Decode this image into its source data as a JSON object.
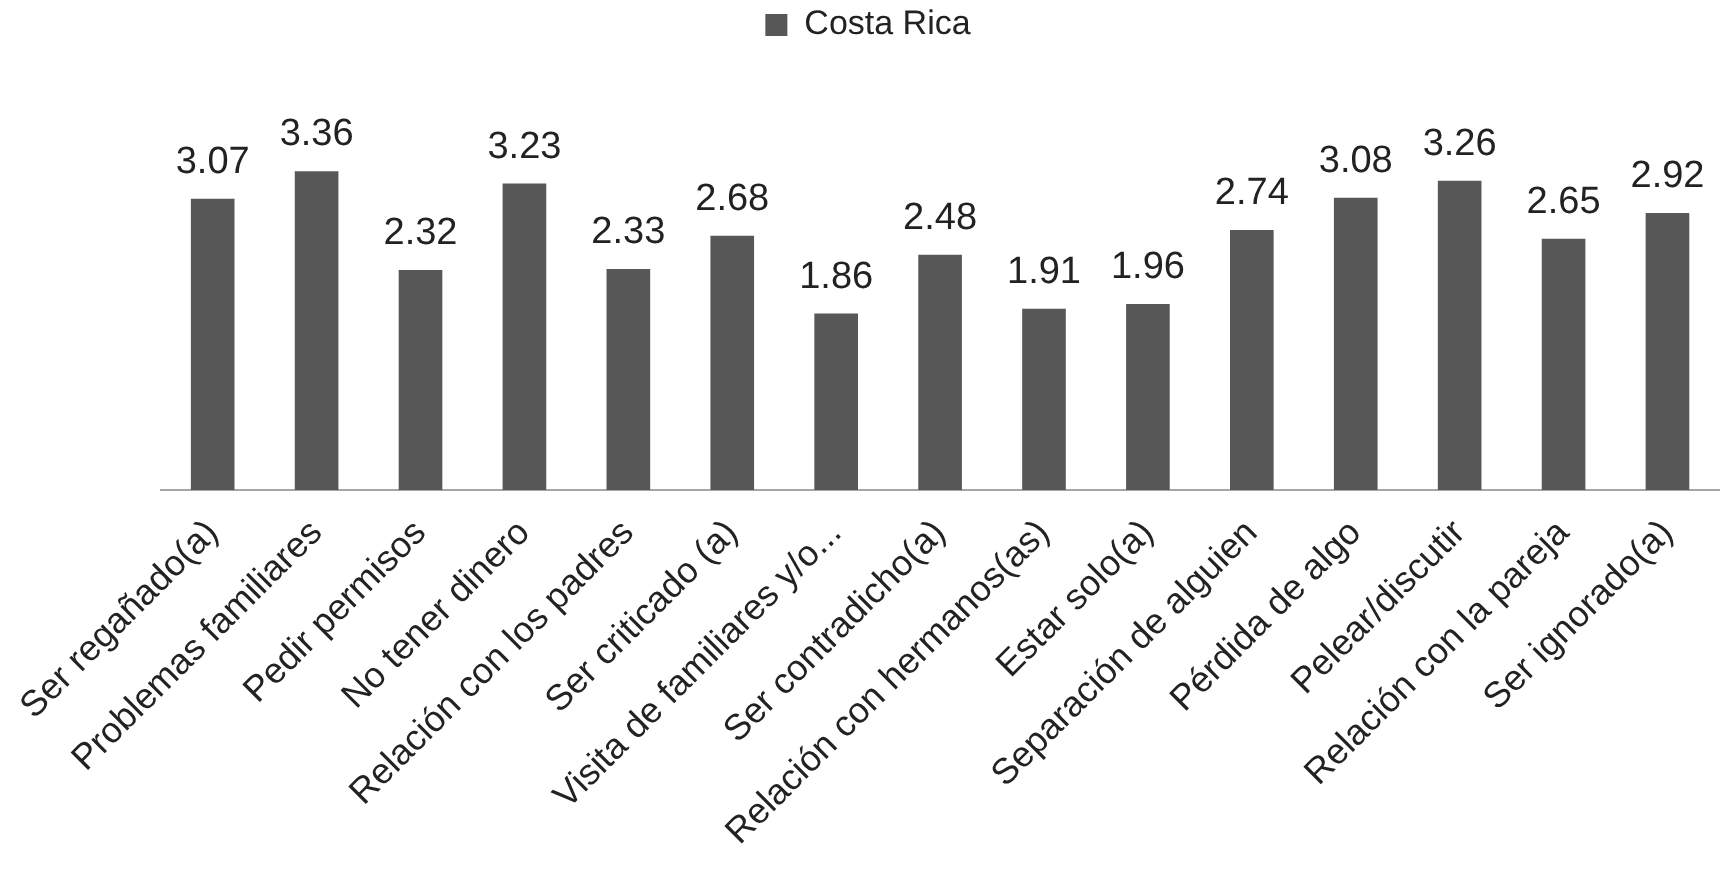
{
  "chart_data": {
    "type": "bar",
    "categories": [
      "Ser regañado(a)",
      "Problemas familiares",
      "Pedir permisos",
      "No tener dinero",
      "Relación con los padres",
      "Ser criticado (a)",
      "Visita de familiares y/o...",
      "Ser contradicho(a)",
      "Relación con hermanos(as)",
      "Estar solo(a)",
      "Separación de alguien",
      "Pérdida de algo",
      "Pelear/discutir",
      "Relación con la pareja",
      "Ser ignorado(a)"
    ],
    "series": [
      {
        "name": "Costa Rica",
        "color": "#575757",
        "values": [
          3.07,
          3.36,
          2.32,
          3.23,
          2.33,
          2.68,
          1.86,
          2.48,
          1.91,
          1.96,
          2.74,
          3.08,
          3.26,
          2.65,
          2.92
        ]
      }
    ],
    "data_labels": true,
    "legend": "top",
    "tick_labels": "x"
  }
}
